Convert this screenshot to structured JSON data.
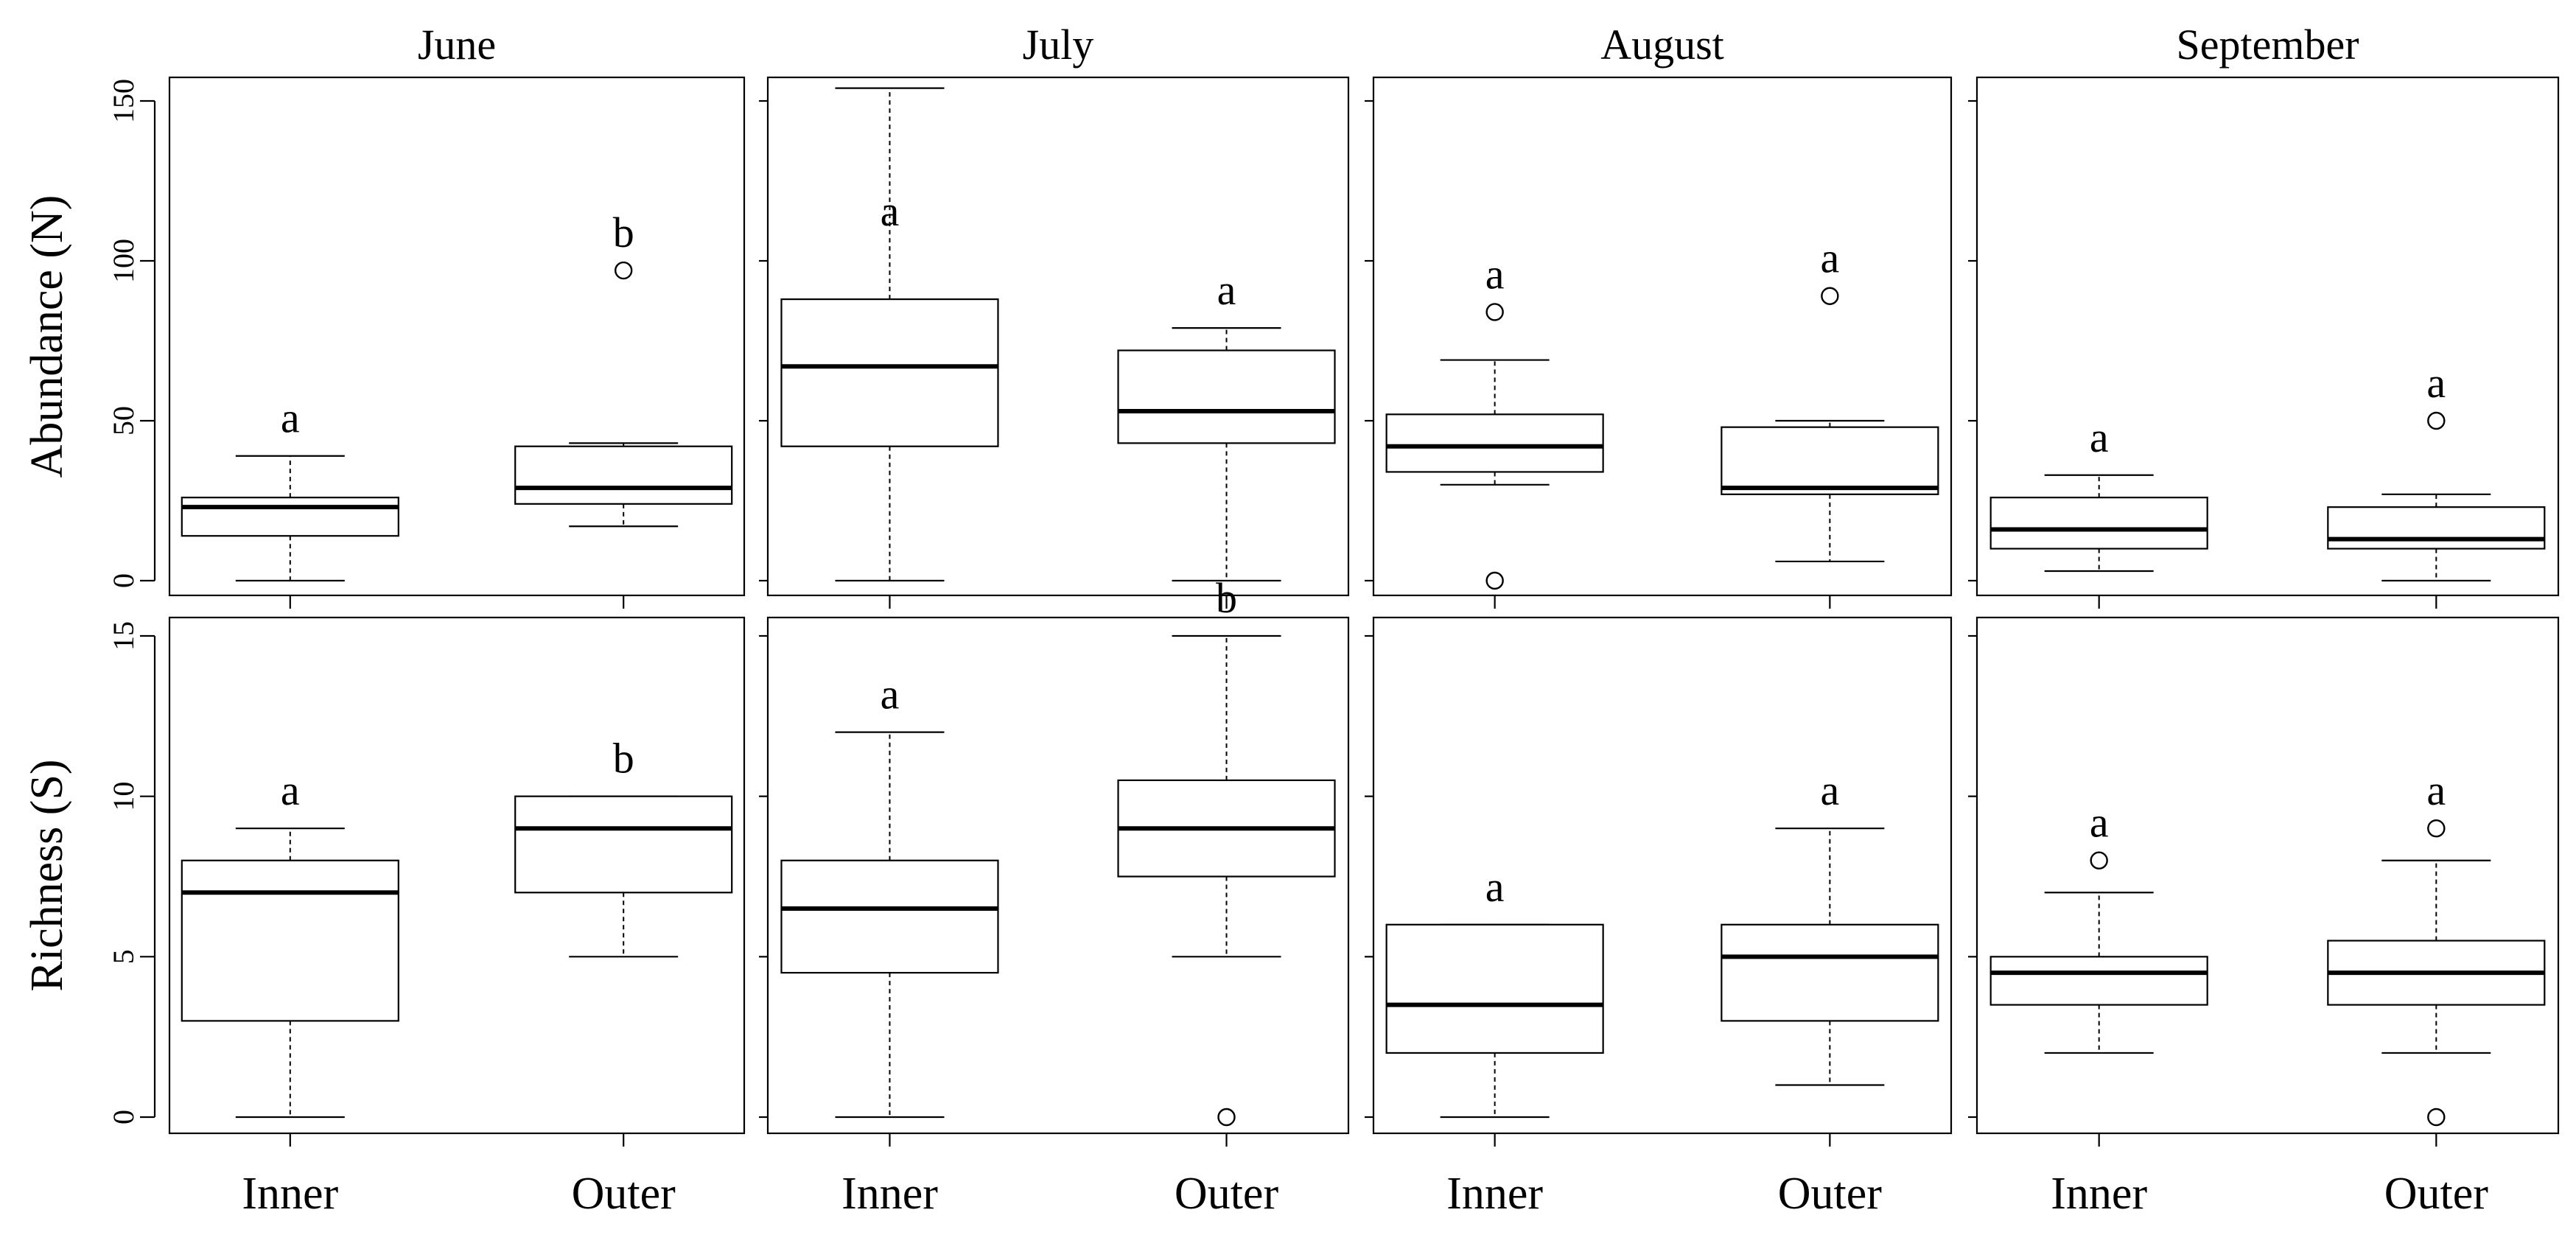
{
  "chart_data": {
    "type": "box",
    "months": [
      "June",
      "July",
      "August",
      "September"
    ],
    "categories": [
      "Inner",
      "Outer"
    ],
    "rows": [
      {
        "ylabel": "Abundance  (N)",
        "ylim": [
          0,
          150
        ],
        "yticks": [
          0,
          50,
          100,
          150
        ],
        "panels": [
          {
            "month": "June",
            "boxes": [
              {
                "group": "Inner",
                "min": 0,
                "q1": 14,
                "median": 23,
                "q3": 26,
                "max": 39,
                "outliers": [],
                "letter": "a"
              },
              {
                "group": "Outer",
                "min": 17,
                "q1": 24,
                "median": 29,
                "q3": 42,
                "max": 43,
                "outliers": [
                  97
                ],
                "letter": "b"
              }
            ]
          },
          {
            "month": "July",
            "boxes": [
              {
                "group": "Inner",
                "min": 0,
                "q1": 42,
                "median": 67,
                "q3": 88,
                "max": 154,
                "outliers": [],
                "letter": "a"
              },
              {
                "group": "Outer",
                "min": 0,
                "q1": 43,
                "median": 53,
                "q3": 72,
                "max": 79,
                "outliers": [],
                "letter": "a"
              }
            ]
          },
          {
            "month": "August",
            "boxes": [
              {
                "group": "Inner",
                "min": 30,
                "q1": 34,
                "median": 42,
                "q3": 52,
                "max": 69,
                "outliers": [
                  84,
                  0
                ],
                "letter": "a"
              },
              {
                "group": "Outer",
                "min": 6,
                "q1": 27,
                "median": 29,
                "q3": 48,
                "max": 50,
                "outliers": [
                  89
                ],
                "letter": "a"
              }
            ]
          },
          {
            "month": "September",
            "boxes": [
              {
                "group": "Inner",
                "min": 3,
                "q1": 10,
                "median": 16,
                "q3": 26,
                "max": 33,
                "outliers": [],
                "letter": "a"
              },
              {
                "group": "Outer",
                "min": 0,
                "q1": 10,
                "median": 13,
                "q3": 23,
                "max": 27,
                "outliers": [
                  50
                ],
                "letter": "a"
              }
            ]
          }
        ]
      },
      {
        "ylabel": "Richness (S)",
        "ylim": [
          0,
          15
        ],
        "yticks": [
          0,
          5,
          10,
          15
        ],
        "panels": [
          {
            "month": "June",
            "boxes": [
              {
                "group": "Inner",
                "min": 0,
                "q1": 3,
                "median": 7,
                "q3": 8,
                "max": 9,
                "outliers": [],
                "letter": "a"
              },
              {
                "group": "Outer",
                "min": 5,
                "q1": 7,
                "median": 9,
                "q3": 10,
                "max": 10,
                "outliers": [],
                "letter": "b"
              }
            ]
          },
          {
            "month": "July",
            "boxes": [
              {
                "group": "Inner",
                "min": 0,
                "q1": 4.5,
                "median": 6.5,
                "q3": 8,
                "max": 12,
                "outliers": [],
                "letter": "a"
              },
              {
                "group": "Outer",
                "min": 5,
                "q1": 7.5,
                "median": 9,
                "q3": 10.5,
                "max": 15,
                "outliers": [
                  0
                ],
                "letter": "b"
              }
            ]
          },
          {
            "month": "August",
            "boxes": [
              {
                "group": "Inner",
                "min": 0,
                "q1": 2,
                "median": 3.5,
                "q3": 6,
                "max": 6,
                "outliers": [],
                "letter": "a"
              },
              {
                "group": "Outer",
                "min": 1,
                "q1": 3,
                "median": 5,
                "q3": 6,
                "max": 9,
                "outliers": [],
                "letter": "a"
              }
            ]
          },
          {
            "month": "September",
            "boxes": [
              {
                "group": "Inner",
                "min": 2,
                "q1": 3.5,
                "median": 4.5,
                "q3": 5,
                "max": 7,
                "outliers": [
                  8
                ],
                "letter": "a"
              },
              {
                "group": "Outer",
                "min": 2,
                "q1": 3.5,
                "median": 4.5,
                "q3": 5.5,
                "max": 8,
                "outliers": [
                  9,
                  0
                ],
                "letter": "a"
              }
            ]
          }
        ]
      }
    ]
  }
}
